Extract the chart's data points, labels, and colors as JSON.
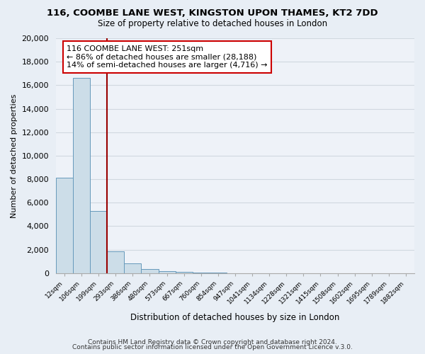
{
  "title": "116, COOMBE LANE WEST, KINGSTON UPON THAMES, KT2 7DD",
  "subtitle": "Size of property relative to detached houses in London",
  "xlabel": "Distribution of detached houses by size in London",
  "ylabel": "Number of detached properties",
  "categories": [
    "12sqm",
    "106sqm",
    "199sqm",
    "293sqm",
    "386sqm",
    "480sqm",
    "573sqm",
    "667sqm",
    "760sqm",
    "854sqm",
    "947sqm",
    "1041sqm",
    "1134sqm",
    "1228sqm",
    "1321sqm",
    "1415sqm",
    "1508sqm",
    "1602sqm",
    "1695sqm",
    "1789sqm",
    "1882sqm"
  ],
  "values": [
    8100,
    16600,
    5300,
    1850,
    800,
    350,
    175,
    100,
    50,
    25,
    0,
    0,
    0,
    0,
    0,
    0,
    0,
    0,
    0,
    0,
    0
  ],
  "bar_color": "#ccdde8",
  "bar_edge_color": "#6699bb",
  "red_line_x": 2.5,
  "annotation_title": "116 COOMBE LANE WEST: 251sqm",
  "annotation_line1": "← 86% of detached houses are smaller (28,188)",
  "annotation_line2": "14% of semi-detached houses are larger (4,716) →",
  "annotation_box_color": "#ffffff",
  "annotation_box_edge": "#cc0000",
  "ylim": [
    0,
    20000
  ],
  "yticks": [
    0,
    2000,
    4000,
    6000,
    8000,
    10000,
    12000,
    14000,
    16000,
    18000,
    20000
  ],
  "footer_line1": "Contains HM Land Registry data © Crown copyright and database right 2024.",
  "footer_line2": "Contains public sector information licensed under the Open Government Licence v.3.0.",
  "bg_color": "#e8eef5",
  "plot_bg_color": "#eef2f8",
  "grid_color": "#d0d8e0"
}
